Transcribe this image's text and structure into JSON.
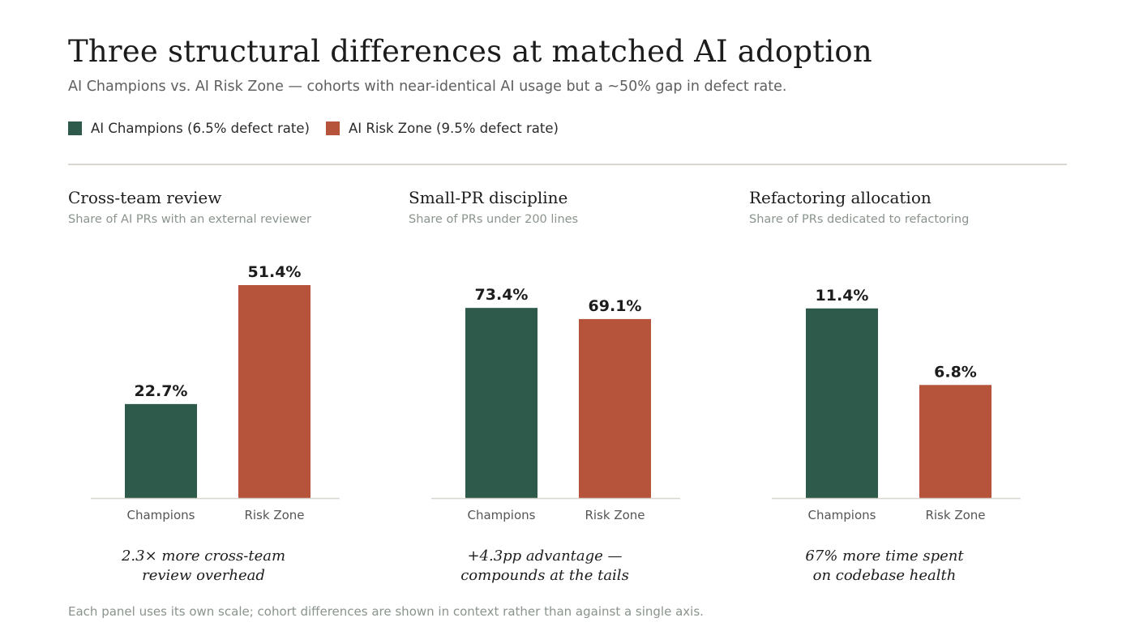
{
  "title": "Three structural differences at matched AI adoption",
  "subtitle": "AI Champions vs. AI Risk Zone — cohorts with near-identical AI usage but a ~50% gap in defect rate.",
  "legend": [
    {
      "label": "AI Champions (6.5% defect rate)",
      "color": "#2e5a4c"
    },
    {
      "label": "AI Risk Zone (9.5% defect rate)",
      "color": "#b5543a"
    }
  ],
  "footnote": "Each panel uses its own scale; cohort differences are shown in context rather than against a single axis.",
  "colors": {
    "champions": "#2e5a4c",
    "risk_zone": "#b5543a",
    "axis": "#d9d6cf"
  },
  "chart_data": [
    {
      "type": "bar",
      "title": "Cross-team review",
      "subtitle": "Share of AI PRs with an external reviewer",
      "categories": [
        "Champions",
        "Risk Zone"
      ],
      "values": [
        22.7,
        51.4
      ],
      "value_labels": [
        "22.7%",
        "51.4%"
      ],
      "ylim": [
        0,
        51.4
      ],
      "annotation": [
        "2.3× more cross-team",
        "review overhead"
      ]
    },
    {
      "type": "bar",
      "title": "Small-PR discipline",
      "subtitle": "Share of PRs under 200 lines",
      "categories": [
        "Champions",
        "Risk Zone"
      ],
      "values": [
        73.4,
        69.1
      ],
      "value_labels": [
        "73.4%",
        "69.1%"
      ],
      "ylim": [
        0,
        82.2
      ],
      "annotation": [
        "+4.3pp advantage —",
        "compounds at the tails"
      ]
    },
    {
      "type": "bar",
      "title": "Refactoring allocation",
      "subtitle": "Share of PRs dedicated to refactoring",
      "categories": [
        "Champions",
        "Risk Zone"
      ],
      "values": [
        11.4,
        6.8
      ],
      "value_labels": [
        "11.4%",
        "6.8%"
      ],
      "ylim": [
        0,
        12.8
      ],
      "annotation": [
        "67% more time spent",
        "on codebase health"
      ]
    }
  ]
}
